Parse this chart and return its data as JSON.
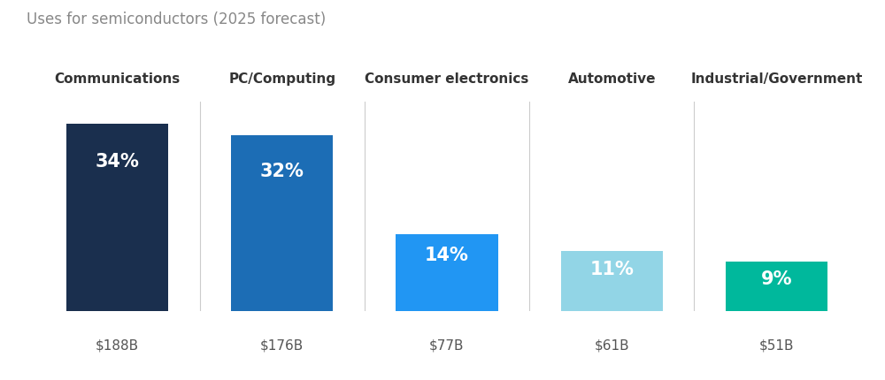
{
  "title": "Uses for semiconductors (2025 forecast)",
  "categories": [
    "Communications",
    "PC/Computing",
    "Consumer electronics",
    "Automotive",
    "Industrial/Government"
  ],
  "values": [
    34,
    32,
    14,
    11,
    9
  ],
  "dollar_labels": [
    "$188B",
    "$176B",
    "$77B",
    "$61B",
    "$51B"
  ],
  "pct_labels": [
    "34%",
    "32%",
    "14%",
    "11%",
    "9%"
  ],
  "bar_colors": [
    "#1a2f4e",
    "#1c6db5",
    "#2196f3",
    "#92d5e6",
    "#00b89c"
  ],
  "background_color": "#ffffff",
  "title_color": "#888888",
  "category_color": "#333333",
  "dollar_color": "#555555",
  "pct_text_color": "#ffffff",
  "bar_width": 0.62,
  "ylim_max": 38,
  "title_fontsize": 12,
  "cat_fontsize": 11,
  "pct_fontsize": 15,
  "dollar_fontsize": 11,
  "separator_color": "#cccccc"
}
